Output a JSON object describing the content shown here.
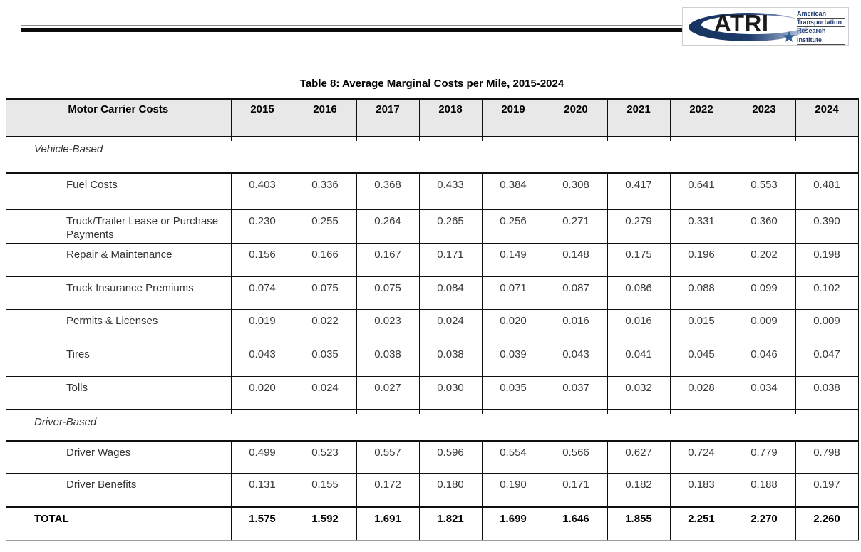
{
  "logo": {
    "acronym": "ATRI",
    "org_lines": [
      "American",
      "Transportation",
      "Research",
      "Institute"
    ],
    "star_icon": "star"
  },
  "table": {
    "title": "Table 8: Average Marginal Costs per Mile, 2015-2024",
    "header": [
      "Motor Carrier Costs",
      "2015",
      "2016",
      "2017",
      "2018",
      "2019",
      "2020",
      "2021",
      "2022",
      "2023",
      "2024"
    ],
    "sections": [
      {
        "label": "Vehicle-Based",
        "rows": [
          {
            "label": "Fuel Costs",
            "values": [
              "0.403",
              "0.336",
              "0.368",
              "0.433",
              "0.384",
              "0.308",
              "0.417",
              "0.641",
              "0.553",
              "0.481"
            ]
          },
          {
            "label": "Truck/Trailer Lease or Purchase Payments",
            "values": [
              "0.230",
              "0.255",
              "0.264",
              "0.265",
              "0.256",
              "0.271",
              "0.279",
              "0.331",
              "0.360",
              "0.390"
            ]
          },
          {
            "label": "Repair & Maintenance",
            "values": [
              "0.156",
              "0.166",
              "0.167",
              "0.171",
              "0.149",
              "0.148",
              "0.175",
              "0.196",
              "0.202",
              "0.198"
            ]
          },
          {
            "label": "Truck Insurance Premiums",
            "values": [
              "0.074",
              "0.075",
              "0.075",
              "0.084",
              "0.071",
              "0.087",
              "0.086",
              "0.088",
              "0.099",
              "0.102"
            ]
          },
          {
            "label": "Permits & Licenses",
            "values": [
              "0.019",
              "0.022",
              "0.023",
              "0.024",
              "0.020",
              "0.016",
              "0.016",
              "0.015",
              "0.009",
              "0.009"
            ]
          },
          {
            "label": "Tires",
            "values": [
              "0.043",
              "0.035",
              "0.038",
              "0.038",
              "0.039",
              "0.043",
              "0.041",
              "0.045",
              "0.046",
              "0.047"
            ]
          },
          {
            "label": "Tolls",
            "values": [
              "0.020",
              "0.024",
              "0.027",
              "0.030",
              "0.035",
              "0.037",
              "0.032",
              "0.028",
              "0.034",
              "0.038"
            ]
          }
        ]
      },
      {
        "label": "Driver-Based",
        "rows": [
          {
            "label": "Driver Wages",
            "values": [
              "0.499",
              "0.523",
              "0.557",
              "0.596",
              "0.554",
              "0.566",
              "0.627",
              "0.724",
              "0.779",
              "0.798"
            ]
          },
          {
            "label": "Driver Benefits",
            "values": [
              "0.131",
              "0.155",
              "0.172",
              "0.180",
              "0.190",
              "0.171",
              "0.182",
              "0.183",
              "0.188",
              "0.197"
            ]
          }
        ]
      }
    ],
    "total": {
      "label": "TOTAL",
      "values": [
        "1.575",
        "1.592",
        "1.691",
        "1.821",
        "1.699",
        "1.646",
        "1.855",
        "2.251",
        "2.270",
        "2.260"
      ]
    }
  },
  "colors": {
    "header_bg": "#e8e8e8",
    "border_dark": "#0f0f0f",
    "navy": "#1f3a6e",
    "star_blue": "#2d5f94"
  }
}
